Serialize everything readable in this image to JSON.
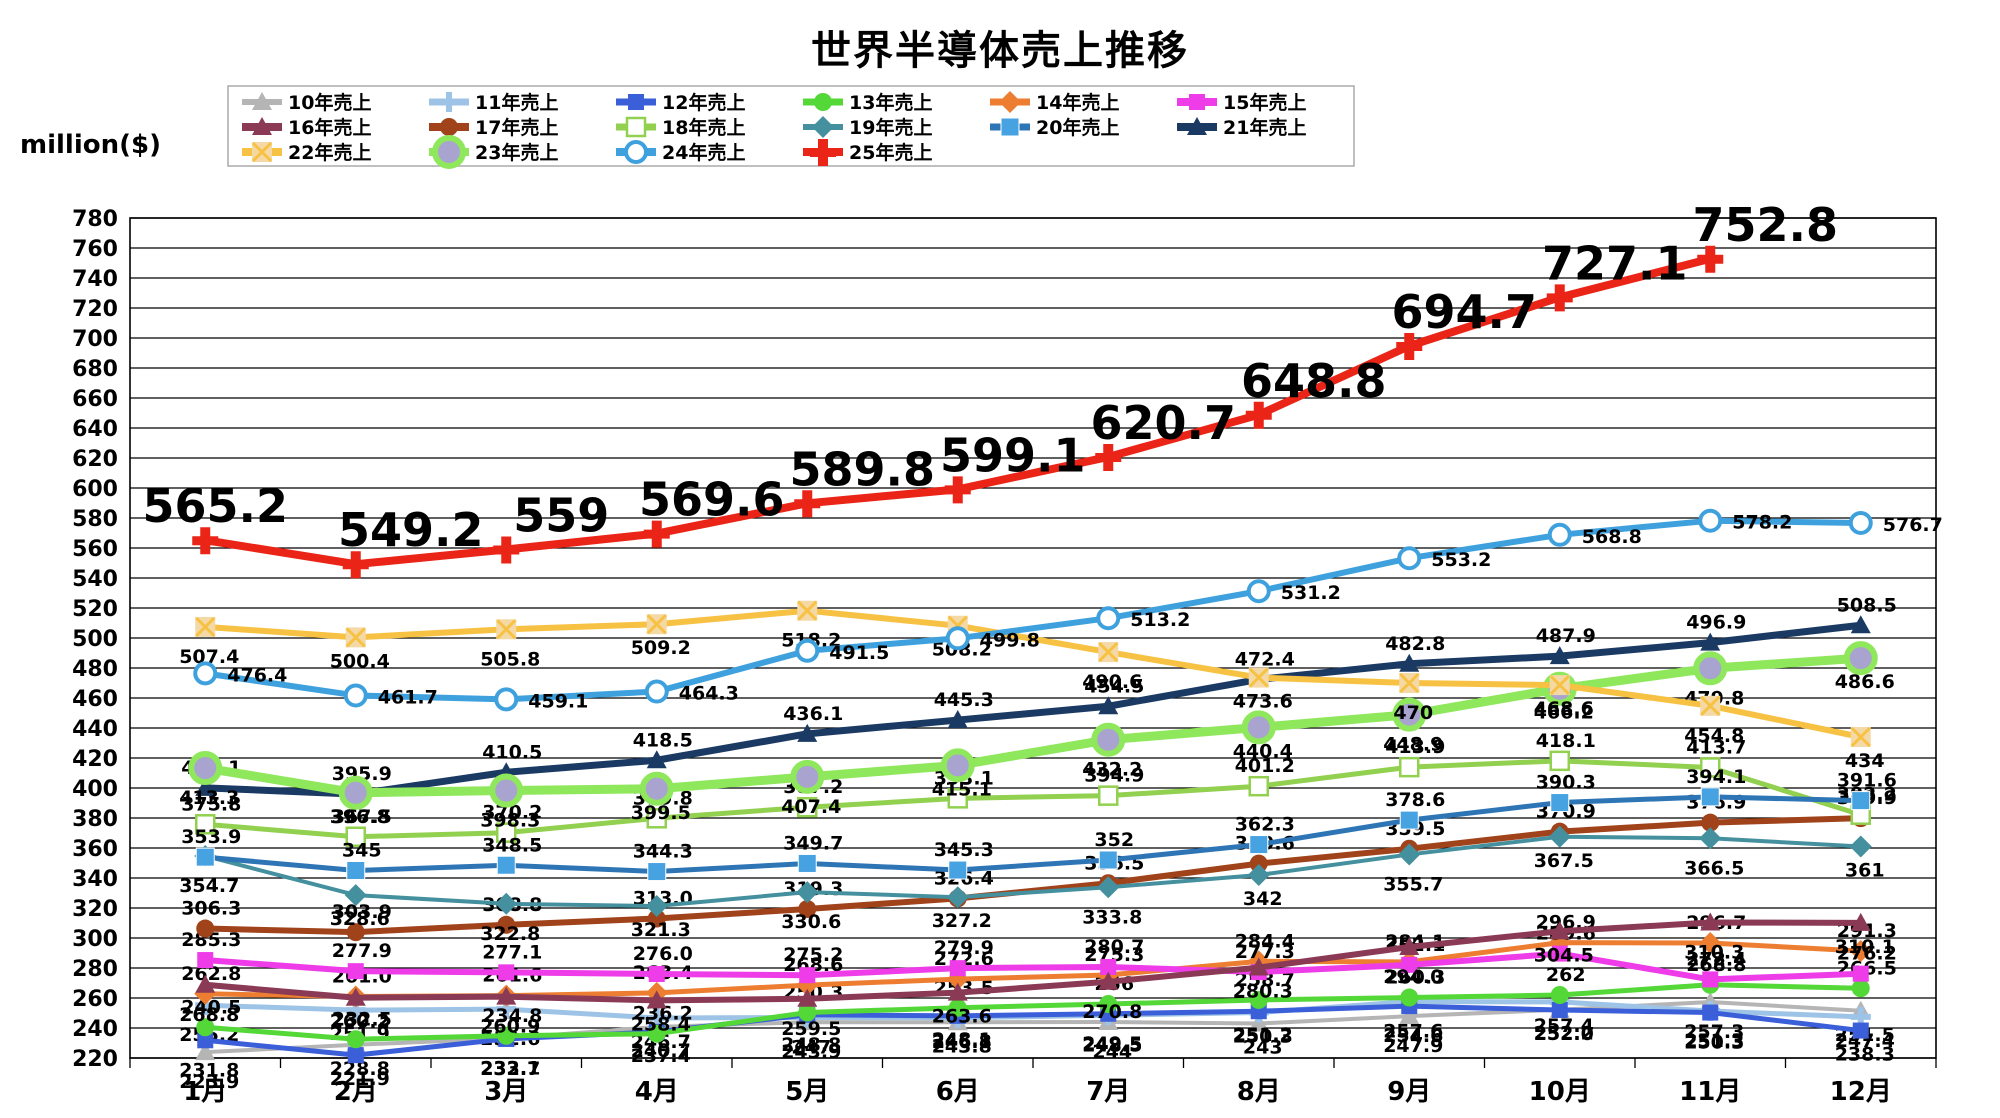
{
  "title": "世界半導体売上推移",
  "y_axis_unit": "million($)",
  "chart_data": {
    "type": "line",
    "title": "世界半導体売上推移",
    "ylabel": "million($)",
    "xlabel": "",
    "ylim": [
      220,
      780
    ],
    "ytick_step": 20,
    "grid": true,
    "legend_position": "top",
    "categories": [
      "1月",
      "2月",
      "3月",
      "4月",
      "5月",
      "6月",
      "7月",
      "8月",
      "9月",
      "10月",
      "11月",
      "12月"
    ],
    "series": [
      {
        "name": "10年売上",
        "color": "#b5b5b5",
        "marker": "triangle",
        "width": 4,
        "label_mode": "below",
        "values": [
          223.9,
          228.8,
          233.1,
          240.7,
          243.9,
          243.8,
          244,
          243,
          247.9,
          252.2,
          257.3,
          251.5
        ],
        "labels": [
          "223.9",
          "228.8",
          "233.1",
          "240.7",
          "243.9",
          "243.8",
          "244",
          "243",
          "247.9",
          "252.2",
          "257.3",
          "251.5"
        ]
      },
      {
        "name": "11年売上",
        "color": "#9dc3e6",
        "marker": "plus",
        "width": 5,
        "label_mode": "below",
        "values": [
          255.2,
          251.9,
          252.6,
          246.7,
          247,
          246.8,
          248.5,
          250.3,
          257.6,
          257.4,
          251.3,
          247.4
        ],
        "labels": [
          "255.2",
          "251.9",
          "252.6",
          "246.7",
          "247",
          "246.8",
          "248.5",
          "250.3",
          "257.6",
          "257.4",
          "251.3",
          "247.4"
        ]
      },
      {
        "name": "12年売上",
        "color": "#3b5ed9",
        "marker": "square",
        "width": 5,
        "label_mode": "below",
        "values": [
          231.8,
          221.9,
          232.7,
          237.4,
          248.8,
          248.1,
          249.5,
          251.2,
          254.6,
          252,
          250.3,
          238.3
        ],
        "labels": [
          "231.8",
          "221.9",
          "232.7",
          "237.4",
          "248.8",
          "248.1",
          "249.5",
          "251.2",
          "254.6",
          "252.0",
          "250.3",
          "238.3"
        ]
      },
      {
        "name": "13年売上",
        "color": "#53d837",
        "marker": "circle",
        "width": 5,
        "label_mode": "above",
        "values": [
          240.5,
          232.5,
          234.8,
          236.2,
          250.3,
          253.5,
          256,
          258.7,
          260.3,
          262,
          268.8,
          266.5
        ],
        "labels": [
          "240.5",
          "232.5",
          "234.8",
          "236.2",
          "250.3",
          "253.5",
          "256",
          "258.7",
          "260.3",
          "262",
          "268.8",
          "266.5"
        ]
      },
      {
        "name": "14年売上",
        "color": "#ed7d31",
        "marker": "diamond",
        "width": 5,
        "label_mode": "above",
        "values": [
          262.8,
          261,
          261.6,
          263.4,
          268.6,
          272.6,
          275.3,
          284.4,
          284.1,
          296.9,
          296.7,
          291.3
        ],
        "labels": [
          "262.8",
          "261.0",
          "261.6",
          "263.4",
          "268.6",
          "272.6",
          "275.3",
          "284.4",
          "284.1",
          "296.9",
          "296.7",
          "291.3"
        ]
      },
      {
        "name": "15年売上",
        "color": "#ee3ce8",
        "marker": "square",
        "width": 6,
        "label_mode": "above",
        "values": [
          285.3,
          277.9,
          277.1,
          276,
          275.2,
          279.9,
          280.7,
          277.3,
          282.1,
          289.6,
          272.4,
          276.2
        ],
        "labels": [
          "285.3",
          "277.9",
          "277.1",
          "276.0",
          "275.2",
          "279.9",
          "280.7",
          "277.3",
          "282.1",
          "289.6",
          "272.4",
          "276.2"
        ]
      },
      {
        "name": "16年売上",
        "color": "#8b3a55",
        "marker": "triangle",
        "width": 6,
        "label_mode": "below",
        "values": [
          268.8,
          260.2,
          260.9,
          258.4,
          259.5,
          263.6,
          270.8,
          280.3,
          294,
          304.5,
          310.3,
          310.1
        ],
        "labels": [
          "268.8",
          "260.2",
          "260.9",
          "258.4",
          "259.5",
          "263.6",
          "270.8",
          "280.3",
          "294.0",
          "304.5",
          "310.3",
          "310.1"
        ]
      },
      {
        "name": "17年売上",
        "color": "#a0431a",
        "marker": "circle",
        "width": 6,
        "label_mode": "above",
        "values": [
          306.3,
          303.9,
          308.8,
          313,
          319.3,
          326.4,
          336.5,
          349.6,
          359.5,
          370.9,
          376.9,
          379.9
        ],
        "labels": [
          "306.3",
          "303.9",
          "308.8",
          "313.0",
          "319.3",
          "326.4",
          "336.5",
          "349.6",
          "359.5",
          "370.9",
          "376.9",
          "379.9"
        ]
      },
      {
        "name": "18年売上",
        "color": "#92d050",
        "marker": "square-open",
        "width": 5,
        "label_mode": "above",
        "values": [
          375.8,
          367.5,
          370.2,
          379.8,
          387.2,
          393.1,
          394.9,
          401.2,
          413.9,
          418.1,
          413.7,
          382.2
        ],
        "labels": [
          "375.8",
          "367.5",
          "370.2",
          "379.8",
          "387.2",
          "393.1",
          "394.9",
          "401.2",
          "413.9",
          "418.1",
          "413.7",
          "382.2"
        ]
      },
      {
        "name": "19年売上",
        "color": "#45909e",
        "marker": "diamond",
        "width": 4,
        "label_mode": "below",
        "values": [
          354.7,
          328.6,
          322.8,
          321.3,
          330.6,
          327.2,
          333.8,
          342,
          355.7,
          367.5,
          366.5,
          361
        ],
        "labels": [
          "354.7",
          "328.6",
          "322.8",
          "321.3",
          "330.6",
          "327.2",
          "333.8",
          "342",
          "355.7",
          "367.5",
          "366.5",
          "361"
        ]
      },
      {
        "name": "20年売上",
        "color": "#2e75b6",
        "marker": "square-light",
        "width": 5,
        "label_mode": "above",
        "values": [
          353.9,
          345,
          348.5,
          344.3,
          349.7,
          345.3,
          352,
          362.3,
          378.6,
          390.3,
          394.1,
          391.6
        ],
        "labels": [
          "353.9",
          "345",
          "348.5",
          "344.3",
          "349.7",
          "345.3",
          "352",
          "362.3",
          "378.6",
          "390.3",
          "394.1",
          "391.6"
        ]
      },
      {
        "name": "21年売上",
        "color": "#1b3a63",
        "marker": "triangle",
        "width": 7,
        "label_mode": "above",
        "values": [
          400.1,
          395.9,
          410.5,
          418.5,
          436.1,
          445.3,
          454.5,
          472.4,
          482.8,
          487.9,
          496.9,
          508.5
        ],
        "labels": [
          "400.1",
          "395.9",
          "410.5",
          "418.5",
          "436.1",
          "445.3",
          "454.5",
          "472.4",
          "482.8",
          "487.9",
          "496.9",
          "508.5"
        ]
      },
      {
        "name": "22年売上",
        "color": "#f7c243",
        "marker": "x-tan",
        "width": 6,
        "label_mode": "below",
        "values": [
          507.4,
          500.4,
          505.8,
          509.2,
          518.2,
          508.2,
          490.6,
          473.6,
          470,
          468.6,
          454.8,
          434
        ],
        "labels": [
          "507.4",
          "500.4",
          "505.8",
          "509.2",
          "518.2",
          "508.2",
          "490.6",
          "473.6",
          "470",
          "468.6",
          "454.8",
          "434"
        ]
      },
      {
        "name": "23年売上",
        "color": "#8fe75c",
        "marker": "circle-big",
        "width": 9,
        "label_mode": "below",
        "values": [
          413.3,
          396.8,
          398.3,
          399.5,
          407.4,
          415.1,
          432.2,
          440.4,
          448.9,
          466.2,
          479.8,
          486.6
        ],
        "labels": [
          "413.3",
          "396.8",
          "398.3",
          "399.5",
          "407.4",
          "415.1",
          "432.2",
          "440.4",
          "448.9",
          "466.2",
          "479.8",
          "486.6"
        ]
      },
      {
        "name": "24年売上",
        "color": "#3ea1de",
        "marker": "circle-open",
        "width": 6,
        "label_mode": "right",
        "values": [
          476.4,
          461.7,
          459.1,
          464.3,
          491.5,
          499.8,
          513.2,
          531.2,
          553.2,
          568.8,
          578.2,
          576.7
        ],
        "labels": [
          "476.4",
          "461.7",
          "459.1",
          "464.3",
          "491.5",
          "499.8",
          "513.2",
          "531.2",
          "553.2",
          "568.8",
          "578.2",
          "576.7"
        ]
      },
      {
        "name": "25年売上",
        "color": "#ea2517",
        "marker": "cross",
        "width": 8,
        "label_mode": "big",
        "values": [
          565.2,
          549.2,
          559,
          569.6,
          589.8,
          599.1,
          620.7,
          648.8,
          694.7,
          727.1,
          752.8,
          null
        ],
        "labels": [
          "565.2",
          "549.2",
          "559",
          "569.6",
          "589.8",
          "599.1",
          "620.7",
          "648.8",
          "694.7",
          "727.1",
          "752.8",
          null
        ]
      }
    ],
    "draw_order": [
      0,
      1,
      2,
      3,
      4,
      5,
      6,
      7,
      8,
      9,
      10,
      11,
      13,
      12,
      14,
      15
    ]
  }
}
